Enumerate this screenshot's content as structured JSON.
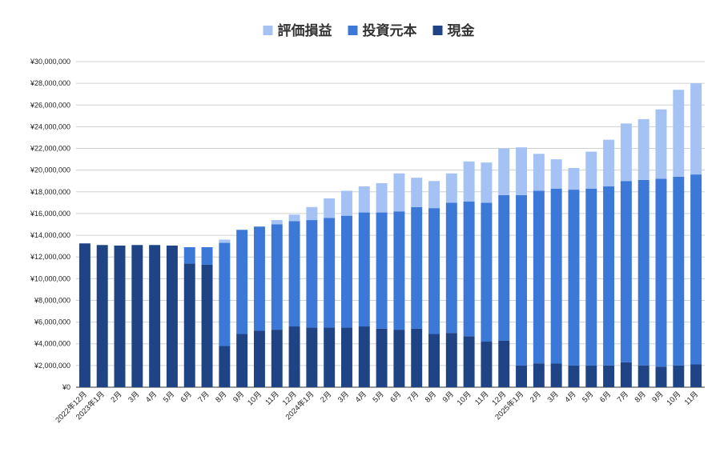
{
  "chart_data": {
    "type": "bar",
    "stacked": true,
    "title": "",
    "xlabel": "",
    "ylabel": "",
    "ylim": [
      0,
      30000000
    ],
    "y_tick_step": 2000000,
    "y_tick_prefix": "¥",
    "grid": true,
    "legend_position": "top-center",
    "categories": [
      "2022年12月",
      "2023年1月",
      "2月",
      "3月",
      "4月",
      "5月",
      "6月",
      "7月",
      "8月",
      "9月",
      "10月",
      "11月",
      "12月",
      "2024年1月",
      "2月",
      "3月",
      "4月",
      "5月",
      "6月",
      "7月",
      "8月",
      "9月",
      "10月",
      "11月",
      "12月",
      "2025年1月",
      "2月",
      "3月",
      "4月",
      "5月",
      "6月",
      "7月",
      "8月",
      "9月",
      "10月",
      "11月"
    ],
    "legend_order": [
      "評価損益",
      "投資元本",
      "現金"
    ],
    "series": [
      {
        "name": "現金",
        "color": "#1f4486",
        "values": [
          13250000,
          13100000,
          13050000,
          13100000,
          13100000,
          13050000,
          11400000,
          11300000,
          3800000,
          4900000,
          5200000,
          5300000,
          5600000,
          5500000,
          5500000,
          5500000,
          5600000,
          5400000,
          5300000,
          5400000,
          4900000,
          5000000,
          4700000,
          4200000,
          4300000,
          2000000,
          2200000,
          2200000,
          2000000,
          2000000,
          2000000,
          2300000,
          2000000,
          1900000,
          2000000,
          2100000
        ]
      },
      {
        "name": "投資元本",
        "color": "#3c78d8",
        "values": [
          0,
          0,
          0,
          0,
          0,
          0,
          1500000,
          1600000,
          9500000,
          9600000,
          9600000,
          9700000,
          9700000,
          9900000,
          10100000,
          10300000,
          10500000,
          10700000,
          10900000,
          11200000,
          11600000,
          12000000,
          12400000,
          12800000,
          13400000,
          15700000,
          15900000,
          16100000,
          16200000,
          16300000,
          16500000,
          16700000,
          17100000,
          17300000,
          17400000,
          17500000
        ]
      },
      {
        "name": "評価損益",
        "color": "#a4c2f4",
        "values": [
          0,
          0,
          0,
          0,
          0,
          0,
          0,
          0,
          300000,
          0,
          0,
          400000,
          600000,
          1200000,
          1800000,
          2300000,
          2400000,
          2700000,
          3500000,
          2700000,
          2500000,
          2700000,
          3700000,
          3700000,
          4300000,
          4400000,
          3400000,
          2700000,
          2000000,
          3400000,
          4300000,
          5300000,
          5600000,
          6400000,
          8000000,
          8400000
        ]
      }
    ]
  }
}
